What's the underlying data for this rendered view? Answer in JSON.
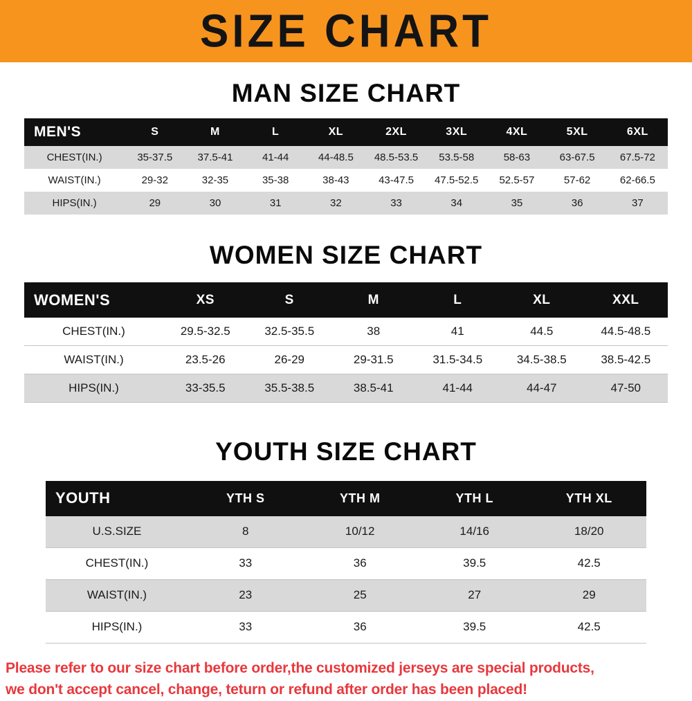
{
  "banner": {
    "title": "SIZE CHART"
  },
  "sections": [
    {
      "heading": "MAN SIZE CHART",
      "table": {
        "header": [
          "MEN'S",
          "S",
          "M",
          "L",
          "XL",
          "2XL",
          "3XL",
          "4XL",
          "5XL",
          "6XL"
        ],
        "rows": [
          [
            "CHEST(IN.)",
            "35-37.5",
            "37.5-41",
            "41-44",
            "44-48.5",
            "48.5-53.5",
            "53.5-58",
            "58-63",
            "63-67.5",
            "67.5-72"
          ],
          [
            "WAIST(IN.)",
            "29-32",
            "32-35",
            "35-38",
            "38-43",
            "43-47.5",
            "47.5-52.5",
            "52.5-57",
            "57-62",
            "62-66.5"
          ],
          [
            "HIPS(IN.)",
            "29",
            "30",
            "31",
            "32",
            "33",
            "34",
            "35",
            "36",
            "37"
          ]
        ]
      }
    },
    {
      "heading": "WOMEN SIZE CHART",
      "table": {
        "header": [
          "WOMEN'S",
          "XS",
          "S",
          "M",
          "L",
          "XL",
          "XXL"
        ],
        "rows": [
          [
            "CHEST(IN.)",
            "29.5-32.5",
            "32.5-35.5",
            "38",
            "41",
            "44.5",
            "44.5-48.5"
          ],
          [
            "WAIST(IN.)",
            "23.5-26",
            "26-29",
            "29-31.5",
            "31.5-34.5",
            "34.5-38.5",
            "38.5-42.5"
          ],
          [
            "HIPS(IN.)",
            "33-35.5",
            "35.5-38.5",
            "38.5-41",
            "41-44",
            "44-47",
            "47-50"
          ]
        ]
      }
    },
    {
      "heading": "YOUTH SIZE CHART",
      "table": {
        "header": [
          "YOUTH",
          "YTH S",
          "YTH M",
          "YTH L",
          "YTH XL"
        ],
        "rows": [
          [
            "U.S.SIZE",
            "8",
            "10/12",
            "14/16",
            "18/20"
          ],
          [
            "CHEST(IN.)",
            "33",
            "36",
            "39.5",
            "42.5"
          ],
          [
            "WAIST(IN.)",
            "23",
            "25",
            "27",
            "29"
          ],
          [
            "HIPS(IN.)",
            "33",
            "36",
            "39.5",
            "42.5"
          ]
        ]
      }
    }
  ],
  "disclaimer": {
    "line1": "Please refer to our size chart before order,the customized jerseys are special products,",
    "line2": "we don't accept cancel, change, teturn or refund after order has been placed!"
  },
  "colors": {
    "banner_bg": "#f7941e",
    "table_header_bg": "#101010",
    "row_shade": "#d9d9d9",
    "disclaimer_text": "#e8383d"
  }
}
